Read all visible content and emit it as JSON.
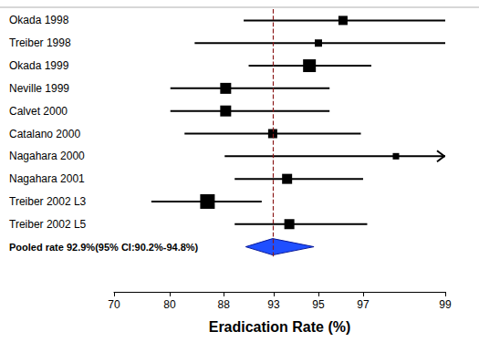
{
  "chart_data": {
    "type": "forest",
    "x_label": "Eradication Rate (%)",
    "categories": [
      "Okada 1998",
      "Treiber 1998",
      "Okada 1999",
      "Neville 1999",
      "Calvet 2000",
      "Catalano 2000",
      "Nagahara 2000",
      "Nagahara 2001",
      "Treiber 2002 L3",
      "Treiber 2002 L5"
    ],
    "values": [
      96.1,
      95.0,
      94.6,
      88.2,
      88.2,
      92.9,
      97.8,
      93.6,
      85.6,
      93.7
    ],
    "lower": [
      90.0,
      83.7,
      90.5,
      80.1,
      80.1,
      82.2,
      88.1,
      89.1,
      76.7,
      89.1
    ],
    "upper": [
      99.0,
      99.0,
      97.2,
      95.5,
      95.5,
      96.9,
      99.5,
      97.0,
      91.8,
      97.1
    ],
    "weights": [
      10,
      8,
      14,
      12,
      12,
      10,
      7,
      11,
      16,
      11
    ],
    "color": "#000000",
    "marker": "square",
    "pooled": {
      "label": "Pooled rate 92.9%(95% CI:90.2%-94.8%)",
      "value": 92.9,
      "lower": 90.2,
      "upper": 94.8,
      "color": "#1f4fff"
    },
    "reference_line": {
      "value": 93,
      "color": "#8b1a1a",
      "line_style": "dashed"
    },
    "xlim": [
      70,
      99
    ],
    "xticks": [
      70,
      80,
      88,
      93,
      95,
      97,
      99
    ],
    "grid": false
  }
}
